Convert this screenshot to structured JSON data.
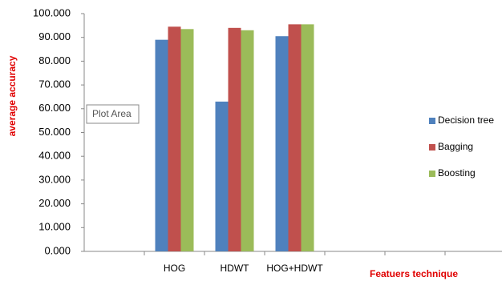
{
  "chart_data": {
    "type": "bar",
    "y_label": "average accuracy",
    "x_label": "Featuers technique",
    "tooltip": "Plot Area",
    "categories": [
      null,
      "HOG",
      "HDWT",
      "HOG+HDWT",
      null,
      null,
      null
    ],
    "series": [
      {
        "name": "Decision tree",
        "color": "#4f81bd",
        "values": [
          null,
          89,
          63,
          90.5,
          null,
          null,
          null
        ]
      },
      {
        "name": "Bagging",
        "color": "#c0504d",
        "values": [
          null,
          94.5,
          94,
          95.5,
          null,
          null,
          null
        ]
      },
      {
        "name": "Boosting",
        "color": "#9bbb59",
        "values": [
          null,
          93.5,
          93,
          95.5,
          null,
          null,
          null
        ]
      }
    ],
    "ylim": [
      0,
      100
    ],
    "yticks": [
      {
        "value": 0,
        "label": "0.000"
      },
      {
        "value": 10,
        "label": "10.000"
      },
      {
        "value": 20,
        "label": "20.000"
      },
      {
        "value": 30,
        "label": "30.000"
      },
      {
        "value": 40,
        "label": "40.000"
      },
      {
        "value": 50,
        "label": "50.000"
      },
      {
        "value": 60,
        "label": "60.000"
      },
      {
        "value": 70,
        "label": "70.000"
      },
      {
        "value": 80,
        "label": "80.000"
      },
      {
        "value": 90,
        "label": "90.000"
      },
      {
        "value": 100,
        "label": "100.000"
      }
    ],
    "grid": false,
    "legend": "right"
  }
}
